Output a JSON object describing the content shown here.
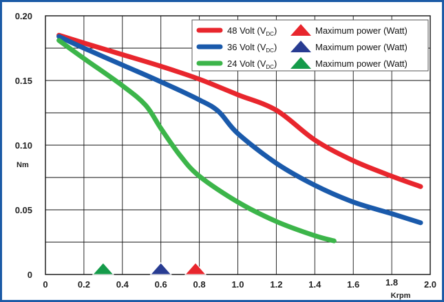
{
  "chart_data": {
    "type": "line",
    "xlabel": "Krpm",
    "ylabel": "Nm",
    "xlim": [
      0,
      2.0
    ],
    "ylim": [
      0,
      0.2
    ],
    "x_ticks": [
      "0",
      "0.2",
      "0.4",
      "0.6",
      "0.8",
      "1.0",
      "1.2",
      "1.4",
      "1.6",
      "1.8",
      "2.0"
    ],
    "y_ticks": [
      "0",
      "0.05",
      "0.10",
      "0.15",
      "0.20"
    ],
    "grid": true,
    "legend_position": "top-right",
    "max_power_marker_label": "Maximum power (Watt)",
    "series": [
      {
        "name_main": "48 Volt (V",
        "name_sub": "DC",
        "name_end": ")",
        "color": "#e8262d",
        "marker_color": "#e8262d",
        "max_power_x": 0.78,
        "points": [
          [
            0.07,
            0.185
          ],
          [
            0.2,
            0.179
          ],
          [
            0.4,
            0.17
          ],
          [
            0.6,
            0.161
          ],
          [
            0.8,
            0.151
          ],
          [
            1.0,
            0.139
          ],
          [
            1.2,
            0.127
          ],
          [
            1.4,
            0.104
          ],
          [
            1.6,
            0.088
          ],
          [
            1.8,
            0.076
          ],
          [
            1.95,
            0.068
          ]
        ]
      },
      {
        "name_main": "36 Volt (V",
        "name_sub": "DC",
        "name_end": ")",
        "color": "#1a5aab",
        "marker_color": "#283c92",
        "max_power_x": 0.6,
        "points": [
          [
            0.07,
            0.184
          ],
          [
            0.2,
            0.175
          ],
          [
            0.4,
            0.162
          ],
          [
            0.6,
            0.149
          ],
          [
            0.8,
            0.135
          ],
          [
            0.9,
            0.126
          ],
          [
            1.0,
            0.109
          ],
          [
            1.2,
            0.086
          ],
          [
            1.4,
            0.069
          ],
          [
            1.6,
            0.056
          ],
          [
            1.8,
            0.047
          ],
          [
            1.95,
            0.04
          ]
        ]
      },
      {
        "name_main": "24 Volt (V",
        "name_sub": "DC",
        "name_end": ")",
        "color": "#3cb54a",
        "marker_color": "#159b4a",
        "max_power_x": 0.3,
        "points": [
          [
            0.07,
            0.181
          ],
          [
            0.2,
            0.167
          ],
          [
            0.4,
            0.146
          ],
          [
            0.52,
            0.131
          ],
          [
            0.6,
            0.113
          ],
          [
            0.7,
            0.092
          ],
          [
            0.8,
            0.076
          ],
          [
            1.0,
            0.056
          ],
          [
            1.2,
            0.041
          ],
          [
            1.4,
            0.03
          ],
          [
            1.5,
            0.026
          ]
        ]
      }
    ]
  }
}
